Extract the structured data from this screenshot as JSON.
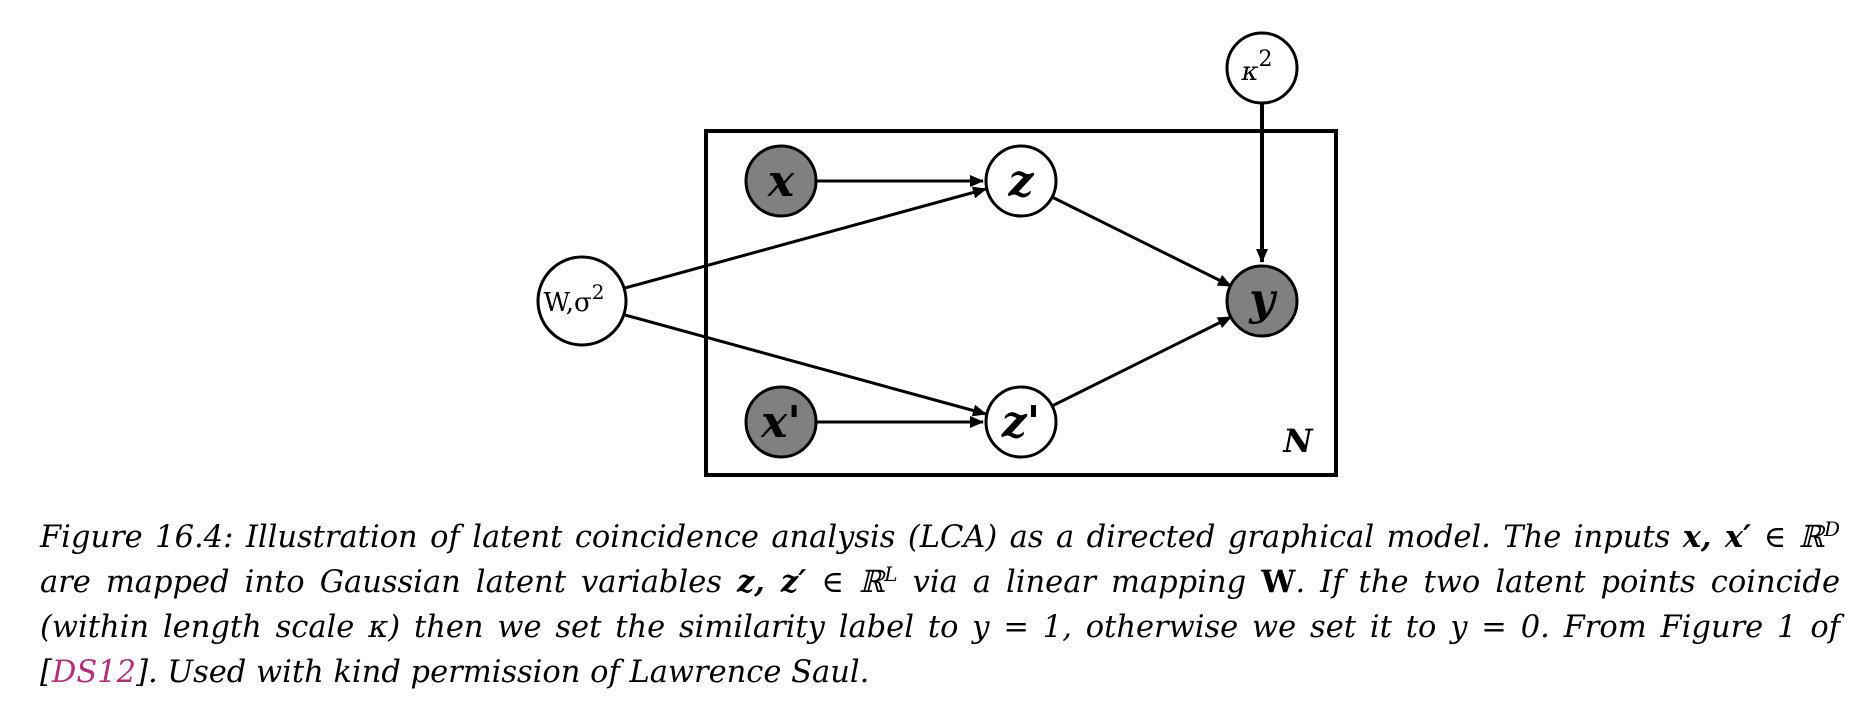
{
  "figure": {
    "nodes": {
      "x": {
        "label": "x",
        "observed": true
      },
      "x_prime": {
        "label": "x'",
        "observed": true
      },
      "z": {
        "label": "z",
        "observed": false
      },
      "z_prime": {
        "label": "z'",
        "observed": false
      },
      "y": {
        "label": "y",
        "observed": true
      },
      "W_sigma": {
        "label": "W,σ",
        "superscript": "2",
        "observed": false
      },
      "kappa": {
        "label": "κ",
        "superscript": "2",
        "observed": false
      }
    },
    "plate_label": "N",
    "colors": {
      "observed_fill": "#808080",
      "latent_fill": "#ffffff",
      "stroke": "#000000",
      "link": "#b0307a"
    }
  },
  "caption": {
    "figure_number": "Figure 16.4:",
    "s1": "Illustration of latent coincidence analysis (LCA) as a directed graphical model. The inputs",
    "vars_x": "x, x′",
    "in1": "∈ ℝ",
    "sup_D": "D",
    "s2": "are mapped into Gaussian latent variables",
    "vars_z": "z, z′",
    "in2": "∈ ℝ",
    "sup_L": "L",
    "s3": "via a linear mapping",
    "bold_W": "W",
    "s4": ". If the two latent points coincide (within length scale κ) then we set the similarity label to y = 1, otherwise we set it to y = 0. From Figure 1 of [",
    "ref": "DS12",
    "s5": "]. Used with kind permission of Lawrence Saul."
  }
}
